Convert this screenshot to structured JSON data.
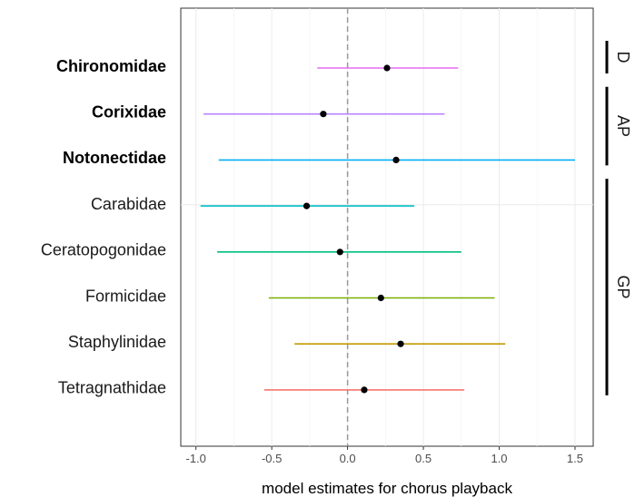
{
  "chart_data": {
    "type": "forest",
    "xlabel": "model estimates for chorus playback",
    "xlim": [
      -1.1,
      1.62
    ],
    "x_ticks": [
      -1.0,
      -0.5,
      0.0,
      0.5,
      1.0,
      1.5
    ],
    "x_tick_labels": [
      "-1.0",
      "-0.5",
      "0.0",
      "0.5",
      "1.0",
      "1.5"
    ],
    "reference_line": 0,
    "grid": true,
    "points": [
      {
        "label": "Chironomidae",
        "bold": true,
        "estimate": 0.26,
        "low": -0.2,
        "high": 0.73,
        "color": "#e76bf3"
      },
      {
        "label": "Corixidae",
        "bold": true,
        "estimate": -0.16,
        "low": -0.95,
        "high": 0.64,
        "color": "#b983ff"
      },
      {
        "label": "Notonectidae",
        "bold": true,
        "estimate": 0.32,
        "low": -0.85,
        "high": 1.5,
        "color": "#00b0f6"
      },
      {
        "label": "Carabidae",
        "bold": false,
        "estimate": -0.27,
        "low": -0.97,
        "high": 0.44,
        "color": "#00bfc4"
      },
      {
        "label": "Ceratopogonidae",
        "bold": false,
        "estimate": -0.05,
        "low": -0.86,
        "high": 0.75,
        "color": "#00bf7d"
      },
      {
        "label": "Formicidae",
        "bold": false,
        "estimate": 0.22,
        "low": -0.52,
        "high": 0.97,
        "color": "#7cae00"
      },
      {
        "label": "Staphylinidae",
        "bold": false,
        "estimate": 0.35,
        "low": -0.35,
        "high": 1.04,
        "color": "#c49a00"
      },
      {
        "label": "Tetragnathidae",
        "bold": false,
        "estimate": 0.11,
        "low": -0.55,
        "high": 0.77,
        "color": "#f8766d"
      }
    ],
    "groups": [
      {
        "label": "D",
        "from": "Chironomidae",
        "to": "Chironomidae"
      },
      {
        "label": "AP",
        "from": "Corixidae",
        "to": "Notonectidae"
      },
      {
        "label": "GP",
        "from": "Carabidae",
        "to": "Tetragnathidae"
      }
    ]
  }
}
